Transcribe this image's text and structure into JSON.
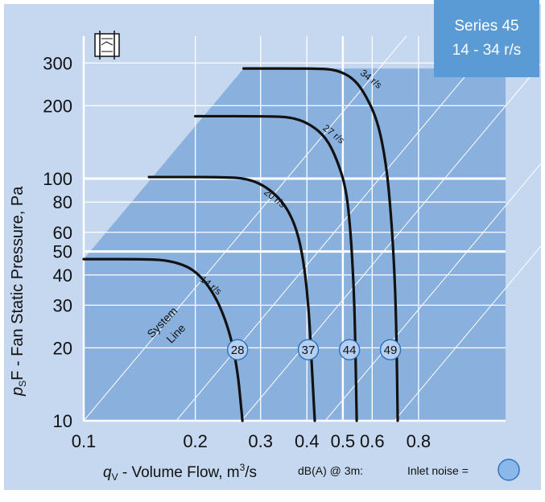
{
  "series_box": {
    "line1": "Series 45",
    "line2": "14 - 34 r/s"
  },
  "footer": {
    "dba_label": "dB(A) @ 3m:",
    "inlet_label": "Inlet noise ="
  },
  "colors": {
    "background": "#c5d8ef",
    "region": "#8ab1de",
    "curve": "#111111",
    "series_box": "#5b9bd5",
    "grid": "#ffffff"
  },
  "chart_data": {
    "type": "line",
    "xscale": "log",
    "yscale": "log",
    "xlim": [
      0.1,
      0.85
    ],
    "ylim": [
      10,
      320
    ],
    "xlabel": {
      "main": "q",
      "sub": "V",
      "rest": " - Volume Flow, m",
      "sup": "3",
      "end": "/s"
    },
    "ylabel": {
      "main": "p",
      "sub": "S",
      "rest": "F - Fan Static Pressure, Pa"
    },
    "xticks": [
      0.1,
      0.2,
      0.3,
      0.4,
      0.5,
      0.6,
      0.8
    ],
    "xtick_labels": [
      "0.1",
      "0.2",
      "0.3",
      "0.4",
      "0.5",
      "0.6",
      "0.8"
    ],
    "yticks": [
      10,
      20,
      30,
      40,
      50,
      60,
      80,
      100,
      200,
      300
    ],
    "ytick_labels": [
      "10",
      "20",
      "30",
      "40",
      "50",
      "60",
      "80",
      "100",
      "200",
      "300"
    ],
    "system_line_label": [
      "System",
      "Line"
    ],
    "series": [
      {
        "name": "14 r/s",
        "noise_dba": "28",
        "label_at": [
          0.205,
          38
        ],
        "points": [
          [
            0.1,
            46.5
          ],
          [
            0.15,
            46.5
          ],
          [
            0.17,
            45.8
          ],
          [
            0.19,
            43.5
          ],
          [
            0.205,
            40
          ],
          [
            0.22,
            35
          ],
          [
            0.235,
            29
          ],
          [
            0.25,
            22
          ],
          [
            0.26,
            16
          ],
          [
            0.265,
            12
          ],
          [
            0.268,
            10
          ]
        ]
      },
      {
        "name": "20 r/s",
        "noise_dba": "37",
        "label_at": [
          0.305,
          87
        ],
        "points": [
          [
            0.15,
            101.5
          ],
          [
            0.24,
            101.5
          ],
          [
            0.275,
            100
          ],
          [
            0.305,
            94
          ],
          [
            0.335,
            84
          ],
          [
            0.36,
            72
          ],
          [
            0.38,
            58
          ],
          [
            0.395,
            42
          ],
          [
            0.405,
            28
          ],
          [
            0.41,
            20
          ],
          [
            0.415,
            14
          ],
          [
            0.42,
            10
          ]
        ]
      },
      {
        "name": "27 r/s",
        "noise_dba": "44",
        "label_at": [
          0.44,
          160
        ],
        "points": [
          [
            0.2,
            181
          ],
          [
            0.33,
            181
          ],
          [
            0.37,
            178
          ],
          [
            0.41,
            167
          ],
          [
            0.45,
            148
          ],
          [
            0.48,
            122
          ],
          [
            0.51,
            92
          ],
          [
            0.525,
            60
          ],
          [
            0.535,
            36
          ],
          [
            0.54,
            22
          ],
          [
            0.545,
            10
          ]
        ]
      },
      {
        "name": "34 r/s",
        "noise_dba": "49",
        "label_at": [
          0.555,
          270
        ],
        "points": [
          [
            0.27,
            285
          ],
          [
            0.43,
            285
          ],
          [
            0.48,
            281
          ],
          [
            0.53,
            262
          ],
          [
            0.57,
            228
          ],
          [
            0.62,
            175
          ],
          [
            0.655,
            115
          ],
          [
            0.675,
            70
          ],
          [
            0.69,
            40
          ],
          [
            0.698,
            22
          ],
          [
            0.703,
            10
          ]
        ]
      }
    ]
  }
}
